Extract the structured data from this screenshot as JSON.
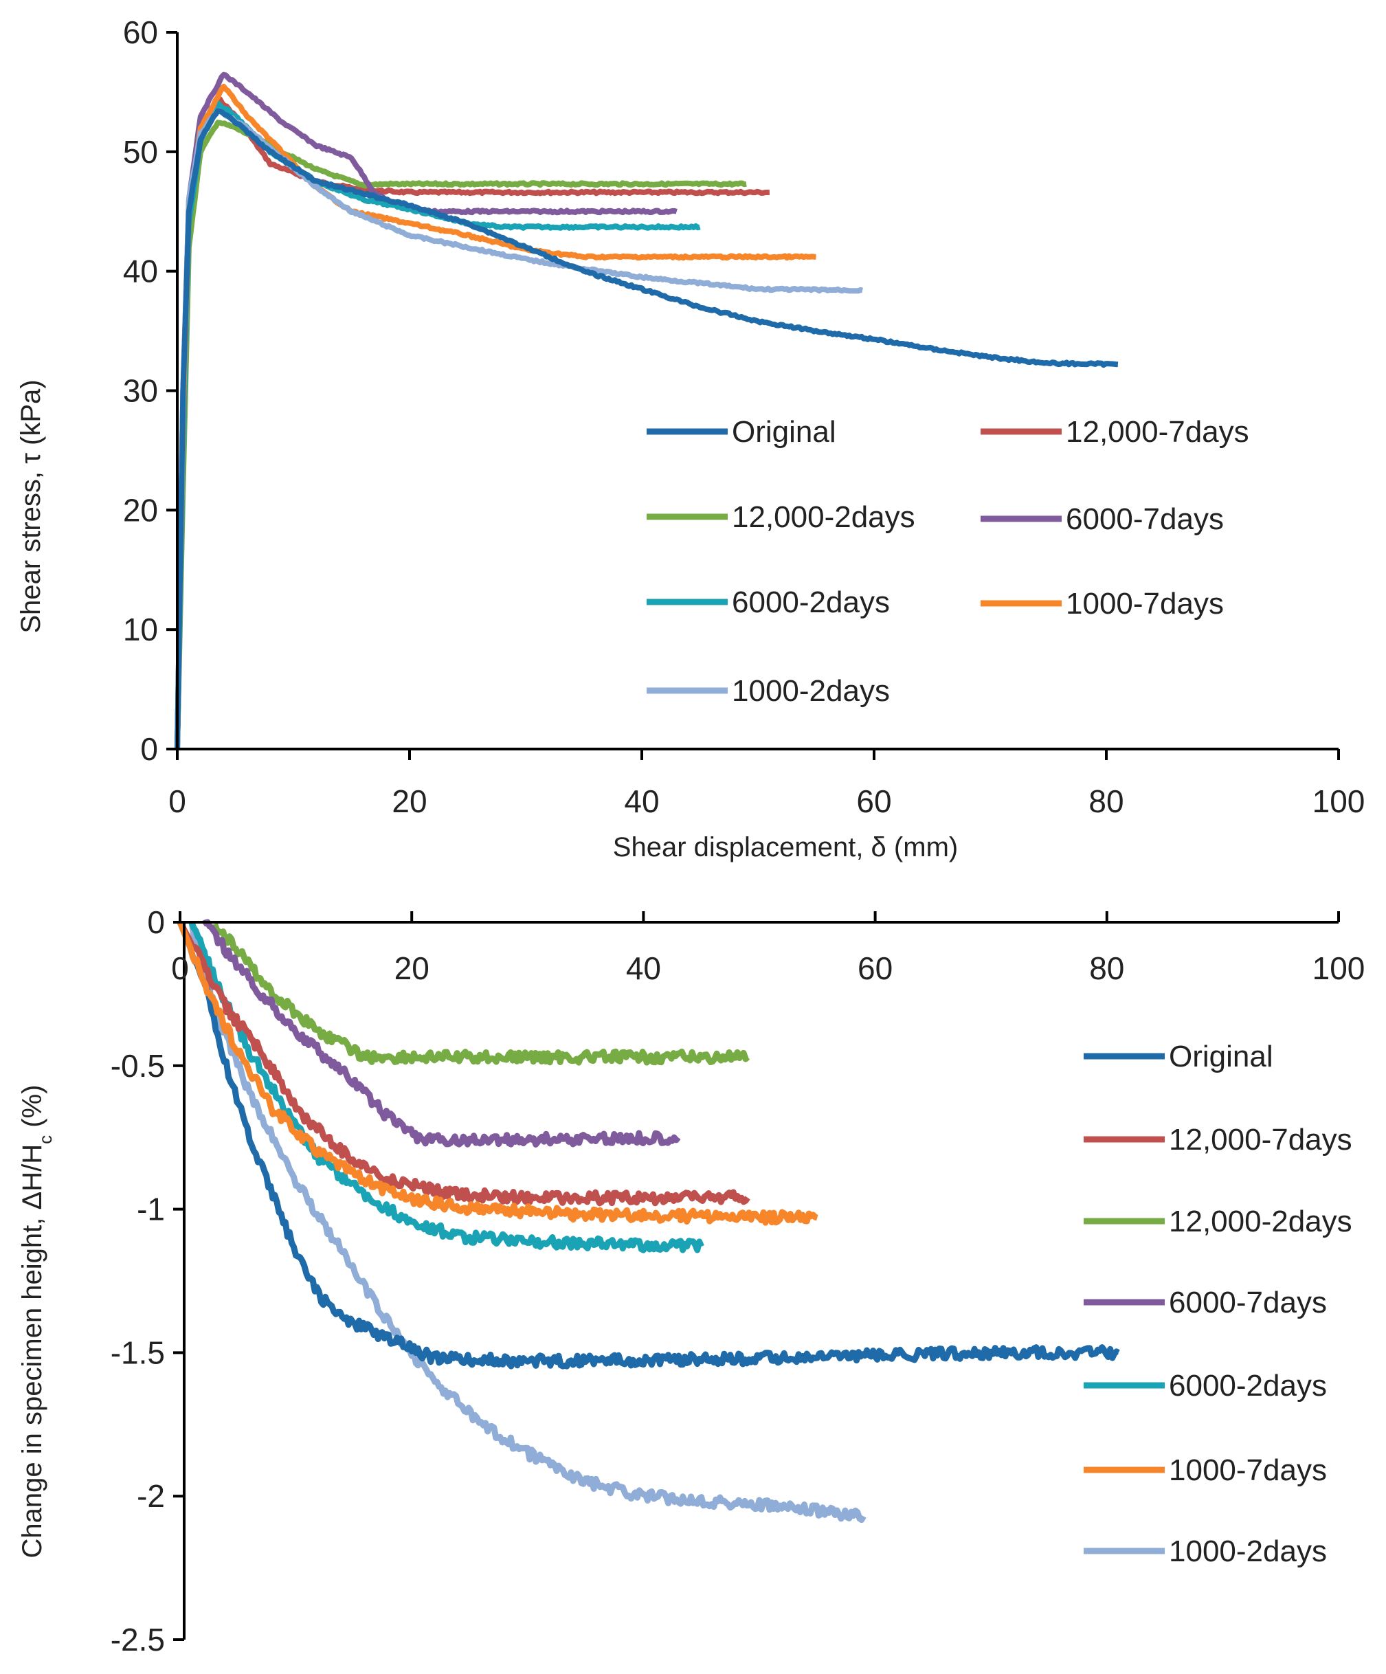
{
  "chart_data": [
    {
      "type": "line",
      "xlabel": "Shear displacement, δ (mm)",
      "ylabel": "Shear stress, τ (kPa)",
      "xlim": [
        0,
        100
      ],
      "ylim": [
        0,
        60
      ],
      "xticks": [
        "0",
        "20",
        "40",
        "60",
        "80",
        "100"
      ],
      "yticks": [
        "0",
        "10",
        "20",
        "30",
        "40",
        "50",
        "60"
      ],
      "grid": false,
      "legend_placement": "center-right",
      "series": [
        {
          "name": "12,000-7days",
          "color": "#c0504d",
          "points": [
            [
              0,
              0
            ],
            [
              0.5,
              28
            ],
            [
              1,
              45
            ],
            [
              2,
              52
            ],
            [
              3.5,
              54.5
            ],
            [
              5,
              53
            ],
            [
              8,
              49
            ],
            [
              12,
              47.5
            ],
            [
              16,
              46.8
            ],
            [
              20,
              46.6
            ],
            [
              30,
              46.6
            ],
            [
              40,
              46.6
            ],
            [
              51,
              46.6
            ]
          ]
        },
        {
          "name": "12,000-2days",
          "color": "#77ab43",
          "points": [
            [
              0,
              0
            ],
            [
              0.5,
              22
            ],
            [
              1,
              42
            ],
            [
              2,
              50
            ],
            [
              3.5,
              52.5
            ],
            [
              5,
              52
            ],
            [
              8,
              50.5
            ],
            [
              12,
              48.5
            ],
            [
              16,
              47.2
            ],
            [
              18,
              47.3
            ],
            [
              30,
              47.3
            ],
            [
              49,
              47.3
            ]
          ]
        },
        {
          "name": "6000-7days",
          "color": "#7f5a9c",
          "points": [
            [
              0,
              0
            ],
            [
              0.5,
              30
            ],
            [
              1,
              46
            ],
            [
              2,
              53
            ],
            [
              4,
              56.5
            ],
            [
              6,
              55
            ],
            [
              9,
              52.5
            ],
            [
              12,
              50.5
            ],
            [
              15,
              49.5
            ],
            [
              17,
              46.5
            ],
            [
              19,
              45.5
            ],
            [
              22,
              45
            ],
            [
              30,
              45
            ],
            [
              43,
              45
            ]
          ]
        },
        {
          "name": "6000-2days",
          "color": "#1aa3b5",
          "points": [
            [
              0,
              0
            ],
            [
              0.5,
              25
            ],
            [
              1,
              44
            ],
            [
              2,
              51
            ],
            [
              3.5,
              54
            ],
            [
              5,
              53
            ],
            [
              8,
              50
            ],
            [
              12,
              47.5
            ],
            [
              16,
              46
            ],
            [
              20,
              45.2
            ],
            [
              25,
              44
            ],
            [
              28,
              43.7
            ],
            [
              35,
              43.7
            ],
            [
              45,
              43.7
            ]
          ]
        },
        {
          "name": "1000-7days",
          "color": "#f7862a",
          "points": [
            [
              0,
              0
            ],
            [
              0.5,
              28
            ],
            [
              1,
              45
            ],
            [
              2,
              52
            ],
            [
              4,
              55.5
            ],
            [
              6,
              53
            ],
            [
              9,
              50
            ],
            [
              12,
              47
            ],
            [
              15,
              45
            ],
            [
              20,
              44
            ],
            [
              25,
              43
            ],
            [
              30,
              41.8
            ],
            [
              35,
              41.2
            ],
            [
              45,
              41.2
            ],
            [
              55,
              41.2
            ]
          ]
        },
        {
          "name": "1000-2days",
          "color": "#8fadd6",
          "points": [
            [
              0,
              0
            ],
            [
              0.5,
              30
            ],
            [
              1,
              46
            ],
            [
              2,
              51.5
            ],
            [
              3.5,
              53.5
            ],
            [
              6,
              52
            ],
            [
              9,
              49.5
            ],
            [
              12,
              47
            ],
            [
              15,
              45
            ],
            [
              20,
              43
            ],
            [
              25,
              42
            ],
            [
              30,
              41
            ],
            [
              35,
              40.2
            ],
            [
              40,
              39.5
            ],
            [
              45,
              39
            ],
            [
              50,
              38.5
            ],
            [
              59,
              38.4
            ]
          ]
        },
        {
          "name": "Original",
          "color": "#1f6aa8",
          "points": [
            [
              0,
              0
            ],
            [
              0.5,
              30
            ],
            [
              1,
              45
            ],
            [
              2,
              51
            ],
            [
              3.5,
              53.5
            ],
            [
              5,
              52.5
            ],
            [
              8,
              50
            ],
            [
              12,
              47.5
            ],
            [
              16,
              46.5
            ],
            [
              20,
              45.5
            ],
            [
              25,
              44
            ],
            [
              30,
              42
            ],
            [
              35,
              40
            ],
            [
              40,
              38.5
            ],
            [
              45,
              37
            ],
            [
              50,
              35.8
            ],
            [
              55,
              35
            ],
            [
              60,
              34.3
            ],
            [
              65,
              33.5
            ],
            [
              70,
              32.8
            ],
            [
              75,
              32.3
            ],
            [
              81,
              32.2
            ]
          ]
        }
      ],
      "legend": [
        "Original",
        "12,000-7days",
        "12,000-2days",
        "6000-7days",
        "6000-2days",
        "1000-7days",
        "1000-2days"
      ]
    },
    {
      "type": "line",
      "xlabel": "",
      "ylabel_main": "Change in specimen height, ΔH/H",
      "ylabel_sub": "c",
      "ylabel_tail": " (%)",
      "xlim": [
        0,
        100
      ],
      "ylim": [
        -2.5,
        0
      ],
      "xticks": [
        "0",
        "20",
        "40",
        "60",
        "80",
        "100"
      ],
      "yticks": [
        "0",
        "-0.5",
        "-1",
        "-1.5",
        "-2",
        "-2.5"
      ],
      "grid": false,
      "legend_placement": "right",
      "series": [
        {
          "name": "12,000-2days",
          "color": "#77ab43",
          "points": [
            [
              3,
              0
            ],
            [
              5,
              -0.1
            ],
            [
              8,
              -0.25
            ],
            [
              12,
              -0.38
            ],
            [
              16,
              -0.47
            ],
            [
              20,
              -0.47
            ],
            [
              49,
              -0.47
            ]
          ]
        },
        {
          "name": "6000-7days",
          "color": "#7f5a9c",
          "points": [
            [
              2,
              0
            ],
            [
              4,
              -0.1
            ],
            [
              7,
              -0.25
            ],
            [
              10,
              -0.38
            ],
            [
              14,
              -0.52
            ],
            [
              18,
              -0.68
            ],
            [
              21,
              -0.76
            ],
            [
              25,
              -0.76
            ],
            [
              43,
              -0.75
            ]
          ]
        },
        {
          "name": "1000-2days",
          "color": "#8fadd6",
          "points": [
            [
              1,
              0
            ],
            [
              3,
              -0.3
            ],
            [
              6,
              -0.6
            ],
            [
              10,
              -0.9
            ],
            [
              14,
              -1.15
            ],
            [
              18,
              -1.4
            ],
            [
              22,
              -1.6
            ],
            [
              26,
              -1.75
            ],
            [
              30,
              -1.85
            ],
            [
              35,
              -1.95
            ],
            [
              40,
              -2.0
            ],
            [
              50,
              -2.03
            ],
            [
              59,
              -2.07
            ]
          ]
        },
        {
          "name": "Original",
          "color": "#1f6aa8",
          "points": [
            [
              0,
              0
            ],
            [
              2,
              -0.2
            ],
            [
              4,
              -0.5
            ],
            [
              6,
              -0.75
            ],
            [
              8,
              -0.95
            ],
            [
              10,
              -1.15
            ],
            [
              12,
              -1.3
            ],
            [
              14,
              -1.38
            ],
            [
              18,
              -1.45
            ],
            [
              22,
              -1.52
            ],
            [
              30,
              -1.53
            ],
            [
              50,
              -1.52
            ],
            [
              70,
              -1.5
            ],
            [
              81,
              -1.5
            ]
          ]
        },
        {
          "name": "6000-2days",
          "color": "#1aa3b5",
          "points": [
            [
              1,
              0
            ],
            [
              3,
              -0.2
            ],
            [
              6,
              -0.45
            ],
            [
              9,
              -0.65
            ],
            [
              12,
              -0.82
            ],
            [
              16,
              -0.95
            ],
            [
              20,
              -1.05
            ],
            [
              25,
              -1.1
            ],
            [
              35,
              -1.12
            ],
            [
              45,
              -1.13
            ]
          ]
        },
        {
          "name": "12,000-7days",
          "color": "#c0504d",
          "points": [
            [
              0,
              0
            ],
            [
              2,
              -0.15
            ],
            [
              4,
              -0.3
            ],
            [
              7,
              -0.45
            ],
            [
              10,
              -0.65
            ],
            [
              14,
              -0.8
            ],
            [
              18,
              -0.9
            ],
            [
              24,
              -0.95
            ],
            [
              30,
              -0.96
            ],
            [
              49,
              -0.96
            ]
          ]
        },
        {
          "name": "1000-7days",
          "color": "#f7862a",
          "points": [
            [
              0,
              0
            ],
            [
              2,
              -0.2
            ],
            [
              5,
              -0.45
            ],
            [
              8,
              -0.65
            ],
            [
              12,
              -0.8
            ],
            [
              16,
              -0.9
            ],
            [
              20,
              -0.97
            ],
            [
              26,
              -1.0
            ],
            [
              35,
              -1.02
            ],
            [
              55,
              -1.03
            ]
          ]
        }
      ],
      "legend": [
        "Original",
        "12,000-7days",
        "12,000-2days",
        "6000-7days",
        "6000-2days",
        "1000-7days",
        "1000-2days"
      ]
    }
  ]
}
